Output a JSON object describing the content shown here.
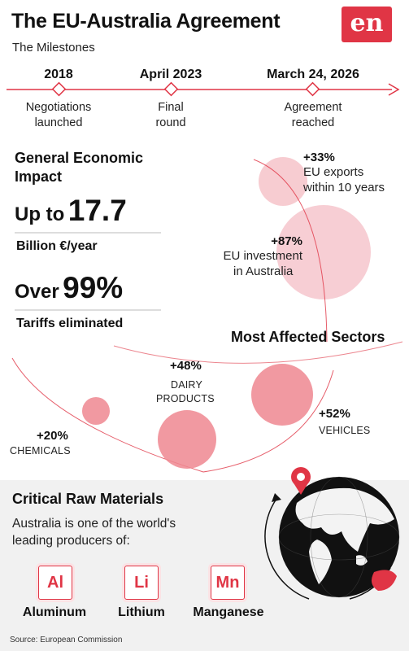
{
  "header": {
    "title": "The EU-Australia Agreement",
    "subtitle": "The Milestones",
    "logo_text": "en"
  },
  "milestones": [
    {
      "date": "2018",
      "label_line1": "Negotiations",
      "label_line2": "launched"
    },
    {
      "date": "April 2023",
      "label_line1": "Final",
      "label_line2": "round"
    },
    {
      "date": "March 24, 2026",
      "label_line1": "Agreement",
      "label_line2": "reached"
    }
  ],
  "impact": {
    "heading_line1": "General Economic",
    "heading_line2": "Impact",
    "stat1_prefix": "Up to",
    "stat1_value": "17.7",
    "stat1_label": "Billion €/year",
    "stat2_prefix": "Over",
    "stat2_value": "99%",
    "stat2_label": "Tariffs eliminated"
  },
  "trade": [
    {
      "pct": "+33%",
      "line1": "EU exports",
      "line2": "within 10 years"
    },
    {
      "pct": "+87%",
      "line1": "EU investment",
      "line2": "in Australia"
    }
  ],
  "sectors": {
    "heading": "Most Affected Sectors",
    "items": [
      {
        "pct": "+20%",
        "name_line1": "CHEMICALS",
        "name_line2": ""
      },
      {
        "pct": "+48%",
        "name_line1": "DAIRY",
        "name_line2": "PRODUCTS"
      },
      {
        "pct": "+52%",
        "name_line1": "VEHICLES",
        "name_line2": ""
      }
    ]
  },
  "raw_materials": {
    "heading": "Critical Raw Materials",
    "intro_line1": "Australia is one of the world's",
    "intro_line2": "leading producers of:",
    "elements": [
      {
        "symbol": "Al",
        "name": "Aluminum"
      },
      {
        "symbol": "Li",
        "name": "Lithium"
      },
      {
        "symbol": "Mn",
        "name": "Manganese"
      }
    ]
  },
  "source": "Source: European Commission",
  "colors": {
    "accent": "#e03545",
    "bubble_light": "#f6c6cc",
    "bubble_mid": "#ee8791",
    "panel_bg": "#f1f1f1"
  },
  "icons": [
    "globe-icon",
    "map-pin-icon",
    "arrow-icon"
  ]
}
